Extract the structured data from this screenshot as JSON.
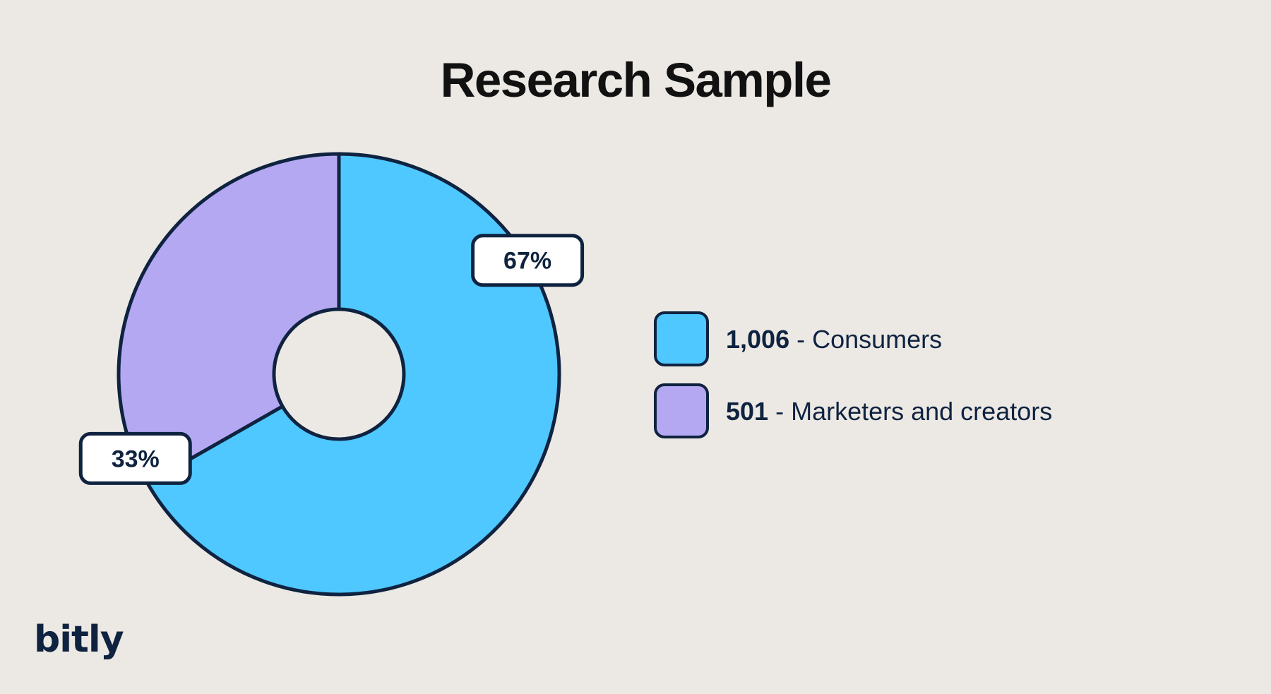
{
  "chart_data": {
    "type": "pie",
    "title": "Research Sample",
    "donut": true,
    "slices": [
      {
        "label": "Consumers",
        "value": 1006,
        "count_label": "1,006",
        "percent": 67,
        "percent_label": "67%",
        "color": "#4FC8FF"
      },
      {
        "label": "Marketers and creators",
        "value": 501,
        "count_label": "501",
        "percent": 33,
        "percent_label": "33%",
        "color": "#B4A8F2"
      }
    ],
    "legend_position": "right"
  },
  "legend": {
    "separator": " - "
  },
  "brand": {
    "logo_text": "bitly"
  },
  "colors": {
    "background": "#ECE9E4",
    "outline": "#0F2340",
    "label_fill": "#FFFFFF"
  },
  "icons": {
    "brand": "bitly-logo"
  }
}
